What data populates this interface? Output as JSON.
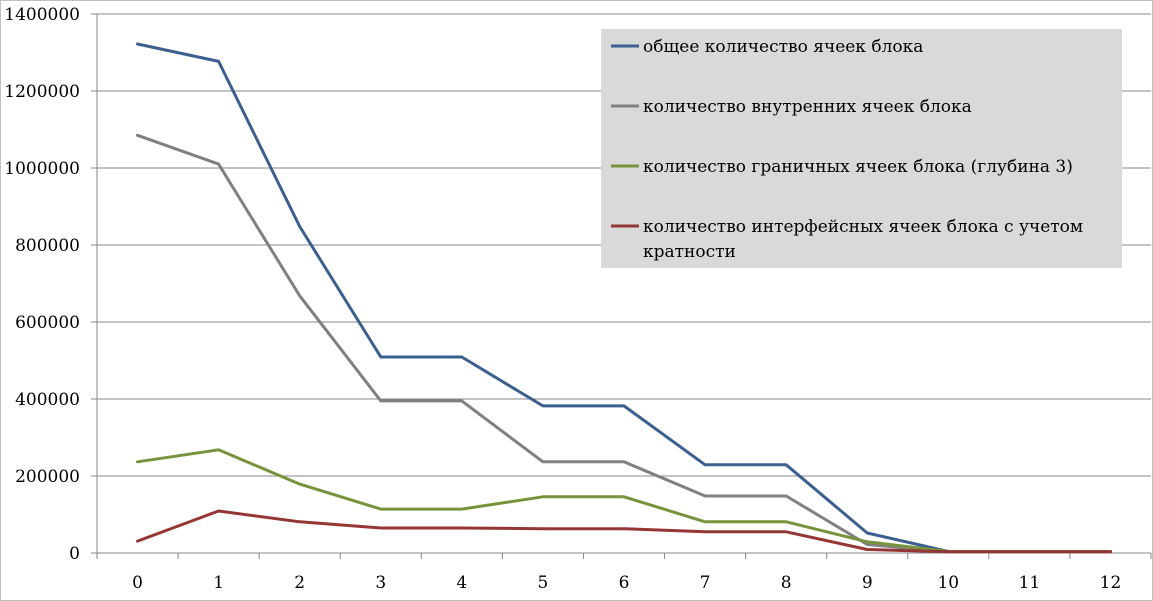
{
  "chart_data": {
    "type": "line",
    "categories": [
      "0",
      "1",
      "2",
      "3",
      "4",
      "5",
      "6",
      "7",
      "8",
      "9",
      "10",
      "11",
      "12"
    ],
    "ylim": [
      0,
      1400000
    ],
    "y_ticks": [
      "0",
      "200000",
      "400000",
      "600000",
      "800000",
      "1000000",
      "1200000",
      "1400000"
    ],
    "grid": true,
    "legend_position": "top-right",
    "series": [
      {
        "name": "общее количество ячеек блока",
        "color": "#3b5f8f",
        "values": [
          1322000,
          1277000,
          848000,
          509000,
          509000,
          382000,
          382000,
          229000,
          229000,
          52000,
          4000,
          4000,
          4000
        ]
      },
      {
        "name": "количество внутренних ячеек блока",
        "color": "#808080",
        "values": [
          1085000,
          1010000,
          668000,
          395000,
          395000,
          237000,
          237000,
          148000,
          148000,
          22000,
          3000,
          3000,
          3000
        ]
      },
      {
        "name": "количество граничных ячеек блока (глубина 3)",
        "color": "#77943c",
        "values": [
          237000,
          268000,
          179000,
          114000,
          114000,
          146000,
          146000,
          81000,
          81000,
          29000,
          4000,
          4000,
          4000
        ]
      },
      {
        "name": "количество интерфейсных ячеек блока с учетом кратности",
        "name_lines": [
          "количество интерфейсных ячеек блока с учетом",
          "кратности"
        ],
        "color": "#943634",
        "values": [
          31000,
          109000,
          81000,
          65000,
          65000,
          63000,
          63000,
          55000,
          55000,
          9000,
          3000,
          3000,
          3000
        ]
      }
    ]
  }
}
